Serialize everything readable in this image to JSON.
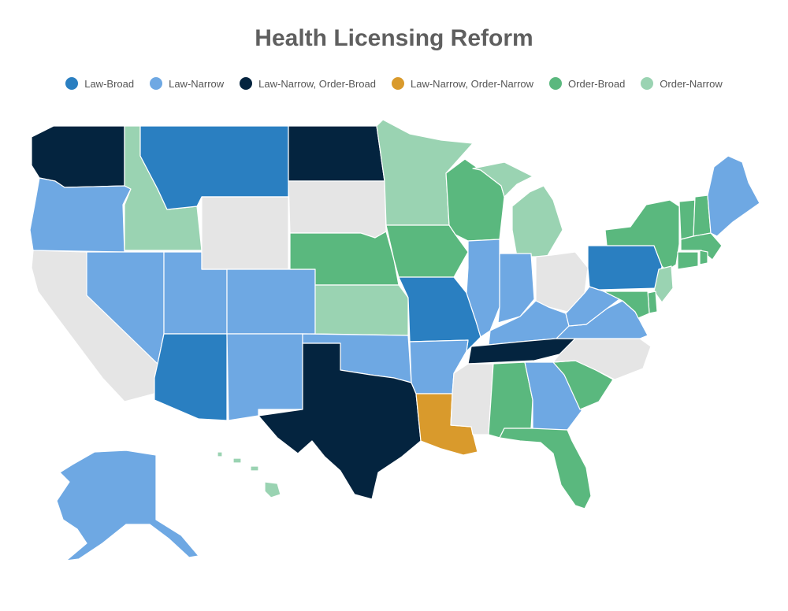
{
  "title": "Health Licensing Reform",
  "colors": {
    "law_broad": "#2a7fc1",
    "law_narrow": "#6ea8e3",
    "law_narrow_order_broad": "#04243f",
    "law_narrow_order_narrow": "#d99a2c",
    "order_broad": "#5ab87e",
    "order_narrow": "#9ad3b2",
    "none": "#e5e5e5"
  },
  "legend": [
    {
      "key": "law_broad",
      "label": "Law-Broad"
    },
    {
      "key": "law_narrow",
      "label": "Law-Narrow"
    },
    {
      "key": "law_narrow_order_broad",
      "label": "Law-Narrow, Order-Broad"
    },
    {
      "key": "law_narrow_order_narrow",
      "label": "Law-Narrow, Order-Narrow"
    },
    {
      "key": "order_broad",
      "label": "Order-Broad"
    },
    {
      "key": "order_narrow",
      "label": "Order-Narrow"
    }
  ],
  "states": {
    "WA": "law_narrow_order_broad",
    "OR": "law_narrow",
    "CA": "none",
    "ID": "order_narrow",
    "NV": "law_narrow",
    "UT": "law_narrow",
    "AZ": "law_broad",
    "MT": "law_broad",
    "WY": "none",
    "CO": "law_narrow",
    "NM": "law_narrow",
    "ND": "law_narrow_order_broad",
    "SD": "none",
    "NE": "order_broad",
    "KS": "order_narrow",
    "OK": "law_narrow",
    "TX": "law_narrow_order_broad",
    "MN": "order_narrow",
    "IA": "order_broad",
    "MO": "law_broad",
    "AR": "law_narrow",
    "LA": "law_narrow_order_narrow",
    "WI": "order_broad",
    "IL": "law_narrow",
    "MI": "order_narrow",
    "IN": "law_narrow",
    "OH": "none",
    "KY": "law_narrow",
    "TN": "law_narrow_order_broad",
    "MS": "none",
    "AL": "order_broad",
    "GA": "law_narrow",
    "FL": "order_broad",
    "SC": "order_broad",
    "NC": "none",
    "VA": "law_narrow",
    "WV": "law_narrow",
    "PA": "law_broad",
    "NY": "order_broad",
    "VT": "order_broad",
    "NH": "order_broad",
    "ME": "law_narrow",
    "MA": "order_broad",
    "CT": "order_broad",
    "RI": "order_broad",
    "NJ": "order_narrow",
    "DE": "order_broad",
    "MD": "order_broad",
    "AK": "law_narrow",
    "HI": "order_narrow"
  }
}
